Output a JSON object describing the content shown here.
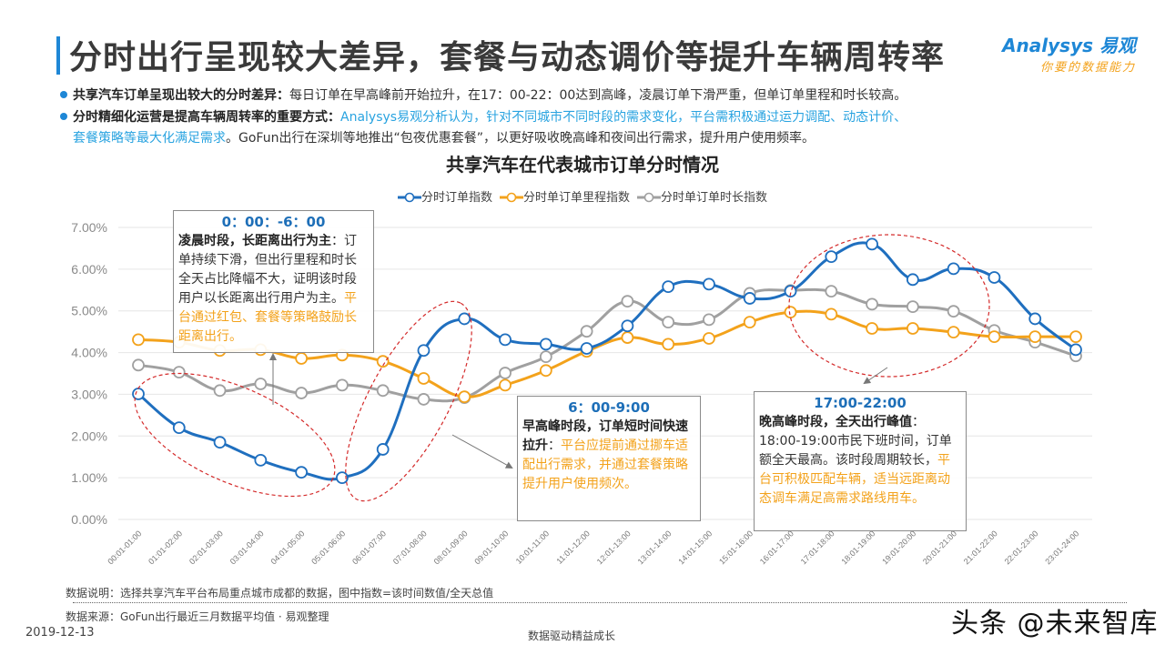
{
  "header": {
    "title": "分时出行呈现较大差异，套餐与动态调价等提升车辆周转率",
    "logo_line1": "Analysys 易观",
    "logo_line2": "你要的数据能力"
  },
  "bullets": [
    {
      "bold": "共享汽车订单呈现出较大的分时差异：",
      "text": "每日订单在早高峰前开始拉升，在17：00-22：00达到高峰，凌晨订单下滑严重，但单订单里程和时长较高。"
    },
    {
      "bold": "分时精细化运营是提高车辆周转率的重要方式：",
      "blue1": "Analysys易观分析认为，针对不同城市不同时段的需求变化，平台需积极通过运力调配、动态计价、",
      "blue2": "套餐策略等最大化满足需求",
      "text": "。GoFun出行在深圳等地推出“包夜优惠套餐”，以更好吸收晚高峰和夜间出行需求，提升用户使用频率。"
    }
  ],
  "chart_data": {
    "type": "line",
    "title": "共享汽车在代表城市订单分时情况",
    "xlabel": "",
    "ylabel": "",
    "ylim": [
      0,
      7
    ],
    "y_ticks": [
      "0.00%",
      "1.00%",
      "2.00%",
      "3.00%",
      "4.00%",
      "5.00%",
      "6.00%",
      "7.00%"
    ],
    "grid": true,
    "legend_position": "top",
    "categories": [
      "00:01-01:00",
      "01:01-02:00",
      "02:01-03:00",
      "03:01-04:00",
      "04:01-05:00",
      "05:01-06:00",
      "06:01-07:00",
      "07:01-08:00",
      "08:01-09:00",
      "09:01-10:00",
      "10:01-11:00",
      "11:01-12:00",
      "12:01-13:00",
      "13:01-14:00",
      "14:01-15:00",
      "15:01-16:00",
      "16:01-17:00",
      "17:01-18:00",
      "18:01-19:00",
      "19:01-20:00",
      "20:01-21:00",
      "21:01-22:00",
      "22:01-23:00",
      "23:01-24:00"
    ],
    "series": [
      {
        "name": "分时订单指数",
        "color": "#1f6fbf",
        "values": [
          3.01,
          2.2,
          1.85,
          1.42,
          1.13,
          1.0,
          1.68,
          4.05,
          4.81,
          4.31,
          4.2,
          4.1,
          4.64,
          5.58,
          5.64,
          5.3,
          5.47,
          6.3,
          6.6,
          5.75,
          6.01,
          5.8,
          4.81,
          4.07
        ]
      },
      {
        "name": "分时单订单里程指数",
        "color": "#f3a21b",
        "values": [
          4.31,
          4.25,
          4.05,
          4.07,
          3.86,
          3.94,
          3.79,
          3.38,
          2.94,
          3.22,
          3.57,
          4.03,
          4.36,
          4.2,
          4.34,
          4.73,
          4.97,
          4.92,
          4.58,
          4.58,
          4.49,
          4.38,
          4.38,
          4.38
        ]
      },
      {
        "name": "分时单订单时长指数",
        "color": "#a0a0a0",
        "values": [
          3.7,
          3.53,
          3.09,
          3.25,
          3.03,
          3.22,
          3.09,
          2.88,
          2.92,
          3.51,
          3.9,
          4.51,
          5.23,
          4.73,
          4.79,
          5.42,
          5.49,
          5.47,
          5.16,
          5.1,
          4.99,
          4.53,
          4.25,
          3.92
        ]
      }
    ]
  },
  "annotations": {
    "night": {
      "heading": "0：00：-6：00",
      "bold": "凌晨时段，长距离出行为主",
      "text": "：订单持续下滑，但出行里程和时长全天占比降幅不大，证明该时段用户以长距离出行用户为主。",
      "orange": "平台通过红包、套餐等策略鼓励长距离出行。"
    },
    "morning": {
      "heading": "6：00-9:00",
      "bold": "早高峰时段，订单短时间快速拉升",
      "text": "：",
      "orange": "平台应提前通过挪车适配出行需求，并通过套餐策略提升用户使用频次。"
    },
    "evening": {
      "heading": "17:00-22:00",
      "bold": "晚高峰时段，全天出行峰值",
      "text": "：18:00-19:00市民下班时间，订单额全天最高。该时段周期较长，",
      "orange": "平台可积极匹配车辆，适当远距离动态调车满足高需求路线用车。"
    }
  },
  "footer": {
    "note": "数据说明：选择共享汽车平台布局重点城市成都的数据，图中指数=该时间数值/全天总值",
    "source": "数据来源：GoFun出行最近三月数据平均值 · 易观整理",
    "date": "2019-12-13",
    "slogan": "数据驱动精益成长",
    "watermark": "头条 @未来智库"
  }
}
